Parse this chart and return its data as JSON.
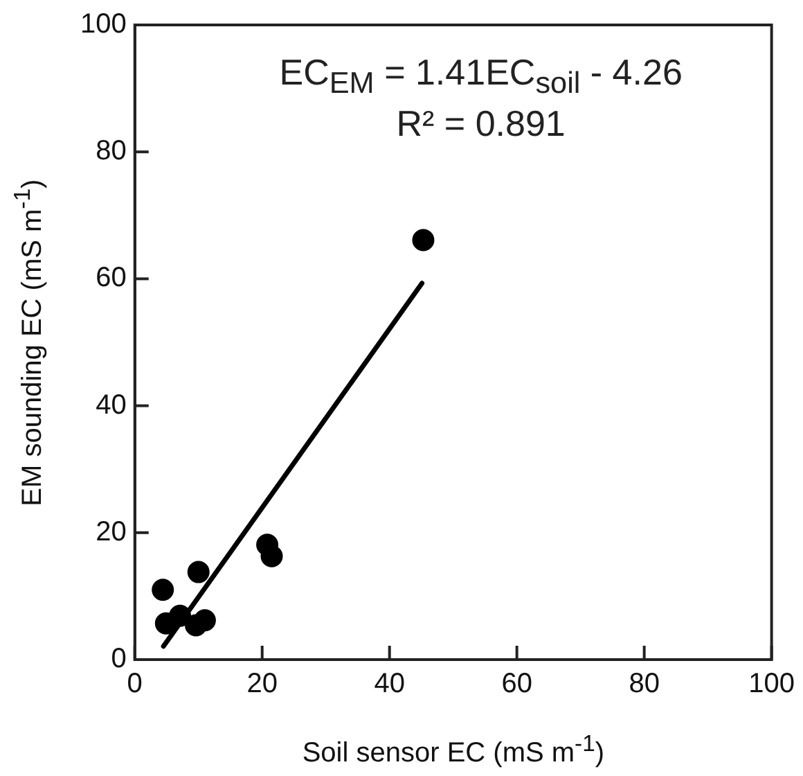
{
  "chart_data": {
    "type": "scatter",
    "xlabel": "Soil sensor EC (mS m$^{-1}$)",
    "ylabel": "EM sounding EC  (mS m$^{-1}$)",
    "xlim": [
      0,
      100
    ],
    "xticks": [
      0,
      20,
      40,
      60,
      80,
      100
    ],
    "ylim": [
      0,
      100
    ],
    "yticks": [
      0,
      20,
      40,
      60,
      80,
      100
    ],
    "grid": false,
    "legend": false,
    "marker": "circle",
    "annotations": [
      "EC$_{EM}$ = 1.41EC$_{soil}$ - 4.26",
      "R² = 0.891"
    ],
    "series": [
      {
        "color": "#000000",
        "x": [
          45.3,
          20.8,
          21.5,
          10.0,
          4.4,
          4.9,
          7.1,
          9.6,
          11.0
        ],
        "values": [
          66.1,
          18.1,
          16.3,
          13.8,
          11.0,
          5.7,
          6.9,
          5.4,
          6.2
        ]
      },
      {
        "type": "line",
        "color": "#000000",
        "marker": "none",
        "line_style": "solid",
        "x": [
          4.5,
          45.1
        ],
        "values": [
          2.1,
          59.3
        ]
      }
    ]
  }
}
